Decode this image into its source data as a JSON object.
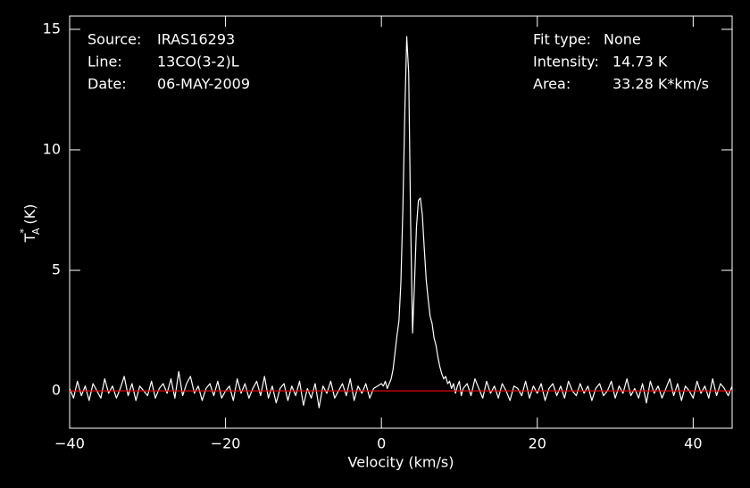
{
  "chart_data": {
    "type": "line",
    "xlabel": "Velocity (km/s)",
    "ylabel": {
      "symbol": "T",
      "superscript": "*",
      "subscript": "A",
      "unit": "(K)"
    },
    "annotations": [
      {
        "label": "Source:",
        "value": "IRAS16293"
      },
      {
        "label": "Line:",
        "value": "13CO(3-2)L"
      },
      {
        "label": "Date:",
        "value": "06-MAY-2009"
      },
      {
        "label": "Fit type:",
        "value": "None"
      },
      {
        "label": "Intensity:",
        "value": "14.73 K"
      },
      {
        "label": "Area:",
        "value": "33.28 K*km/s"
      }
    ],
    "xlim": [
      -40,
      45
    ],
    "ylim": [
      -1.55,
      15.55
    ],
    "xticks": [
      {
        "value": -40,
        "label": "−40"
      },
      {
        "value": -20,
        "label": "−20"
      },
      0,
      20,
      40
    ],
    "yticks": [
      0,
      5,
      10,
      15
    ],
    "baseline": {
      "value": 0,
      "color": "#e00000"
    },
    "series": [
      {
        "color": "#ffffff",
        "x": [
          -40,
          -39.5,
          -39,
          -38.5,
          -38,
          -37.5,
          -37,
          -36.5,
          -36,
          -35.5,
          -35,
          -34.5,
          -34,
          -33.5,
          -33,
          -32.5,
          -32,
          -31.5,
          -31,
          -30.5,
          -30,
          -29.5,
          -29,
          -28.5,
          -28,
          -27.5,
          -27,
          -26.5,
          -26,
          -25.5,
          -25,
          -24.5,
          -24,
          -23.5,
          -23,
          -22.5,
          -22,
          -21.5,
          -21,
          -20.5,
          -20,
          -19.5,
          -19,
          -18.5,
          -18,
          -17.5,
          -17,
          -16.5,
          -16,
          -15.5,
          -15,
          -14.5,
          -14,
          -13.5,
          -13,
          -12.5,
          -12,
          -11.5,
          -11,
          -10.5,
          -10,
          -9.5,
          -9,
          -8.5,
          -8,
          -7.5,
          -7,
          -6.5,
          -6,
          -5.5,
          -5,
          -4.5,
          -4,
          -3.5,
          -3,
          -2.5,
          -2,
          -1.5,
          -1,
          -0.5,
          0,
          0.25,
          0.5,
          0.75,
          1,
          1.25,
          1.5,
          1.75,
          2,
          2.25,
          2.5,
          2.75,
          3,
          3.25,
          3.5,
          3.75,
          4,
          4.25,
          4.5,
          4.75,
          5,
          5.25,
          5.5,
          5.75,
          6,
          6.25,
          6.5,
          6.75,
          7,
          7.25,
          7.5,
          7.75,
          8,
          8.25,
          8.5,
          8.75,
          9,
          9.25,
          9.5,
          9.75,
          10,
          10.25,
          10.5,
          11,
          11.5,
          12,
          12.5,
          13,
          13.5,
          14,
          14.5,
          15,
          15.5,
          16,
          16.5,
          17,
          17.5,
          18,
          18.5,
          19,
          19.5,
          20,
          20.5,
          21,
          21.5,
          22,
          22.5,
          23,
          23.5,
          24,
          24.5,
          25,
          25.5,
          26,
          26.5,
          27,
          27.5,
          28,
          28.5,
          29,
          29.5,
          30,
          30.5,
          31,
          31.5,
          32,
          32.5,
          33,
          33.5,
          34,
          34.5,
          35,
          35.5,
          36,
          36.5,
          37,
          37.5,
          38,
          38.5,
          39,
          39.5,
          40,
          40.5,
          41,
          41.5,
          42,
          42.5,
          43,
          43.5,
          44,
          44.5,
          45
        ],
        "values": [
          0.1,
          -0.3,
          0.4,
          -0.2,
          0.2,
          -0.4,
          0.3,
          0.0,
          -0.3,
          0.5,
          -0.1,
          0.2,
          -0.3,
          0.1,
          0.6,
          -0.2,
          0.3,
          -0.4,
          0.2,
          0.0,
          -0.2,
          0.4,
          -0.3,
          0.1,
          0.3,
          -0.1,
          0.5,
          -0.3,
          0.8,
          -0.2,
          0.3,
          0.6,
          -0.1,
          0.2,
          -0.4,
          0.1,
          0.3,
          -0.2,
          0.4,
          -0.3,
          0.0,
          0.2,
          -0.4,
          0.5,
          -0.1,
          0.3,
          -0.3,
          0.1,
          0.4,
          -0.2,
          0.6,
          -0.3,
          0.2,
          -0.5,
          0.1,
          0.3,
          -0.4,
          0.2,
          -0.2,
          0.4,
          -0.6,
          0.1,
          -0.3,
          0.3,
          -0.7,
          0.2,
          -0.1,
          0.4,
          -0.3,
          0.0,
          0.3,
          -0.2,
          0.5,
          -0.4,
          0.2,
          -0.1,
          0.3,
          -0.3,
          0.1,
          0.2,
          0.3,
          0.2,
          0.4,
          0.1,
          0.3,
          0.5,
          0.9,
          1.6,
          2.3,
          2.9,
          4.5,
          7.5,
          11.5,
          14.7,
          13.2,
          7.0,
          2.4,
          4.5,
          6.8,
          7.9,
          8.0,
          7.3,
          5.9,
          4.6,
          3.8,
          3.1,
          2.8,
          2.2,
          1.9,
          1.4,
          1.0,
          0.7,
          0.5,
          0.6,
          0.3,
          0.4,
          0.1,
          0.3,
          -0.1,
          0.2,
          0.4,
          -0.2,
          0.1,
          0.3,
          -0.2,
          0.5,
          0.1,
          -0.3,
          0.4,
          -0.1,
          0.2,
          -0.3,
          0.3,
          0.0,
          -0.4,
          0.2,
          0.1,
          -0.2,
          0.4,
          -0.3,
          0.2,
          -0.1,
          0.3,
          -0.4,
          0.1,
          0.3,
          -0.2,
          0.2,
          -0.3,
          0.4,
          0.0,
          -0.2,
          0.3,
          -0.1,
          0.2,
          -0.4,
          0.1,
          0.3,
          -0.2,
          0.0,
          0.4,
          -0.3,
          0.2,
          -0.1,
          0.5,
          -0.2,
          0.1,
          -0.3,
          0.3,
          -0.5,
          0.4,
          -0.1,
          0.2,
          -0.3,
          0.1,
          0.5,
          -0.2,
          0.3,
          -0.4,
          0.2,
          0.0,
          -0.3,
          0.4,
          -0.1,
          0.2,
          -0.3,
          0.5,
          -0.2,
          0.3,
          0.1,
          -0.2,
          0.2
        ]
      }
    ]
  }
}
